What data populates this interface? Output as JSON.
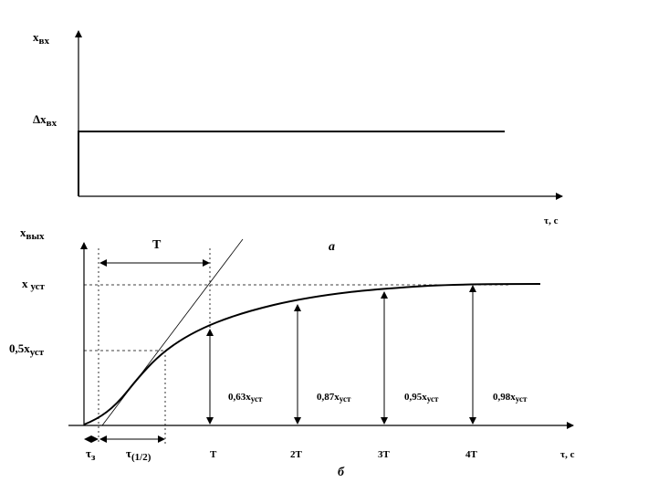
{
  "top_plot": {
    "y_label": "x",
    "y_label_sub": "вх",
    "step_label_prefix": "Δx",
    "step_label_sub": "вх",
    "x_label": "τ, с",
    "caption": "а"
  },
  "bottom_plot": {
    "y_label": "x",
    "y_label_sub": "вых",
    "steady_label": "x",
    "steady_label_sub": "уст",
    "half_label": "0,5x",
    "half_label_sub": "уст",
    "T_span_label": "T",
    "x_label": "τ, с",
    "caption": "б",
    "tau_z": "τ",
    "tau_z_sub": "з",
    "tau_half": "τ",
    "tau_half_sub": "(1/2)",
    "ticks": [
      "T",
      "2T",
      "3T",
      "4T"
    ],
    "level_labels": [
      {
        "prefix": "0,63x",
        "sub": "уст"
      },
      {
        "prefix": "0,87x",
        "sub": "уст"
      },
      {
        "prefix": "0,95x",
        "sub": "уст"
      },
      {
        "prefix": "0,98x",
        "sub": "уст"
      }
    ]
  },
  "colors": {
    "stroke": "#000000",
    "background": "#ffffff"
  }
}
